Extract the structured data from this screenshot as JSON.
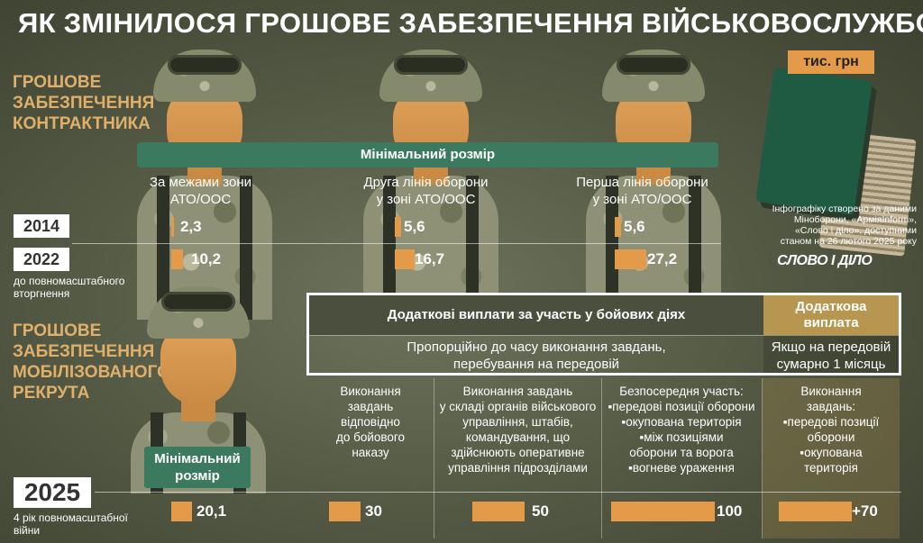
{
  "title": "ЯК ЗМІНИЛОСЯ ГРОШОВЕ ЗАБЕЗПЕЧЕННЯ ВІЙСЬКОВОСЛУЖБОВЦІВ",
  "units": "тис. грн",
  "contract": {
    "heading_lines": [
      "ГРОШОВЕ",
      "ЗАБЕЗПЕЧЕННЯ",
      "КОНТРАКТНИКА"
    ],
    "banner": "Мінімальний розмір",
    "zones": [
      {
        "line1": "За межами зони",
        "line2": "АТО/ООС",
        "v2014": "2,3",
        "v2022": "10,2",
        "f2014": 2.3,
        "f2022": 10.2
      },
      {
        "line1": "Друга лінія оборони",
        "line2": "у зоні АТО/ООС",
        "v2014": "5,6",
        "v2022": "16,7",
        "f2014": 5.6,
        "f2022": 16.7
      },
      {
        "line1": "Перша лінія оборони",
        "line2": "у зоні АТО/ООС",
        "v2014": "5,6",
        "v2022": "27,2",
        "f2014": 5.6,
        "f2022": 27.2
      }
    ],
    "year1": "2014",
    "year2": "2022",
    "year2_note_line1": "до повномасштабного",
    "year2_note_line2": "вторгнення"
  },
  "source": {
    "line1": "Інфографіку створено за даними",
    "line2": "Міноборони, «АрміяInform»,",
    "line3": "«Слово і діло», доступними",
    "line4": "станом на 26 лютого 2025 року",
    "logo": "СЛОВО І ДІЛО"
  },
  "mobilized": {
    "heading_lines": [
      "ГРОШОВЕ",
      "ЗАБЕЗПЕЧЕННЯ",
      "МОБІЛІЗОВАНОГО,",
      "РЕКРУТА"
    ],
    "minimal_line1": "Мінімальний",
    "minimal_line2": "розмір",
    "year": "2025",
    "year_note_line1": "4 рік повномасштабної",
    "year_note_line2": "війни",
    "table": {
      "header_main": "Додаткові виплати за участь у бойових діях",
      "header_extra_line1": "Додаткова",
      "header_extra_line2": "виплата",
      "row_main_line1": "Пропорційно до часу виконання завдань,",
      "row_main_line2": "перебування на передовій",
      "row_extra_line1": "Якщо на передовій",
      "row_extra_line2": "сумарно 1 місяць"
    },
    "columns": [
      {
        "lines": [
          "Виконання",
          "завдань",
          "відповідно",
          "до бойового",
          "наказу"
        ]
      },
      {
        "lines": [
          "Виконання завдань",
          "у складі органів військового",
          "управління, штабів,",
          "командування, що",
          "здійснюють оперативне",
          "управління підрозділами"
        ]
      },
      {
        "lines": [
          "Безпосередня участь:",
          "▪передові позиції оборони",
          "▪окупована територія",
          "▪між позиціями",
          "оборони та ворога",
          "▪вогневе ураження"
        ]
      },
      {
        "lines": [
          "Виконання",
          "завдань:",
          "▪передові позиції",
          "оборони",
          "▪окупована",
          "територія"
        ]
      }
    ],
    "values": [
      {
        "label": "20,1",
        "v": 20.1
      },
      {
        "label": "30",
        "v": 30
      },
      {
        "label": "50",
        "v": 50
      },
      {
        "label": "100",
        "v": 100
      },
      {
        "label": "+70",
        "v": 70
      }
    ]
  },
  "colors": {
    "accent": "#e39b4a",
    "banner": "#3b7a5e",
    "heading": "#e0b06b",
    "extra": "#b79650"
  }
}
